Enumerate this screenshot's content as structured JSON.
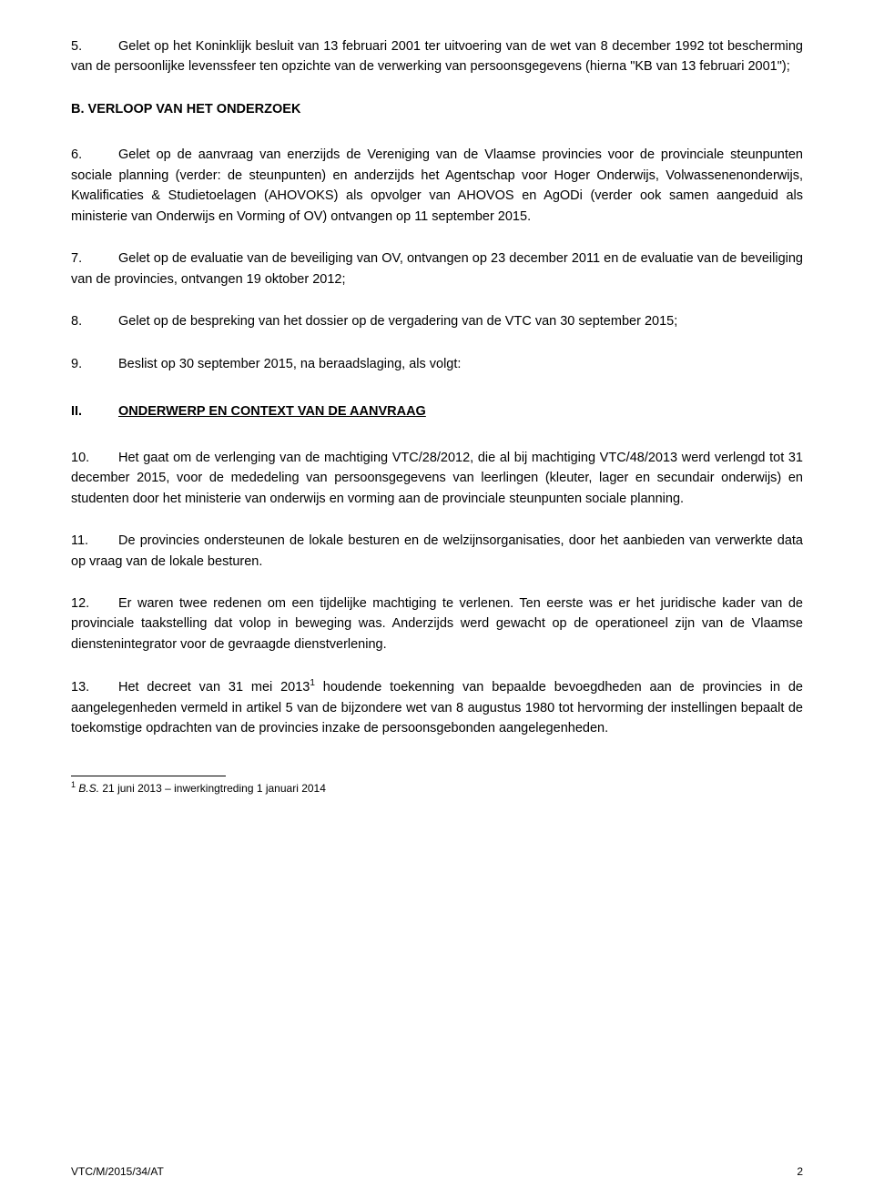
{
  "p5": {
    "num": "5.",
    "text": "Gelet op het Koninklijk besluit van 13 februari 2001 ter uitvoering van de wet van 8 december 1992 tot bescherming van de persoonlijke levenssfeer ten opzichte van de verwerking van persoonsgegevens (hierna \"KB van 13 februari 2001\");"
  },
  "headingB": "B. VERLOOP VAN HET ONDERZOEK",
  "p6": {
    "num": "6.",
    "text": "Gelet op de aanvraag van enerzijds de Vereniging van de Vlaamse provincies voor de provinciale steunpunten sociale planning (verder: de steunpunten) en anderzijds het Agentschap voor Hoger Onderwijs, Volwassenenonderwijs, Kwalificaties & Studietoelagen (AHOVOKS) als opvolger van AHOVOS en AgODi (verder ook samen aangeduid als ministerie van Onderwijs en Vorming of OV) ontvangen op 11 september 2015."
  },
  "p7": {
    "num": "7.",
    "text": "Gelet op de evaluatie van de beveiliging van OV, ontvangen op 23 december 2011 en de evaluatie van de beveiliging van de provincies, ontvangen 19 oktober 2012;"
  },
  "p8": {
    "num": "8.",
    "text": "Gelet op de bespreking van het dossier op de vergadering van de VTC van 30 september 2015;"
  },
  "p9": {
    "num": "9.",
    "text": "Beslist op 30 september 2015, na beraadslaging, als volgt:"
  },
  "headingII": {
    "roman": "II.",
    "text": "ONDERWERP EN CONTEXT VAN DE AANVRAAG"
  },
  "p10": {
    "num": "10.",
    "text": "Het gaat om de verlenging van de machtiging VTC/28/2012, die al bij machtiging VTC/48/2013 werd verlengd tot 31 december 2015, voor de mededeling van persoonsgegevens van leerlingen (kleuter, lager en secundair onderwijs) en studenten door het ministerie van onderwijs en vorming aan de provinciale steunpunten sociale planning."
  },
  "p11": {
    "num": "11.",
    "text": "De provincies ondersteunen de lokale besturen en de welzijnsorganisaties, door het aanbieden van verwerkte data op vraag van de lokale besturen."
  },
  "p12": {
    "num": "12.",
    "text": "Er waren twee redenen om een tijdelijke machtiging te verlenen. Ten eerste was er het juridische kader van de provinciale taakstelling dat volop in beweging was. Anderzijds werd gewacht op de operationeel zijn van de Vlaamse dienstenintegrator voor de gevraagde dienstverlening."
  },
  "p13": {
    "num": "13.",
    "before": "Het decreet van 31 mei 2013",
    "sup": "1",
    "after": " houdende toekenning van bepaalde bevoegdheden aan de provincies in de aangelegenheden vermeld in artikel 5 van de bijzondere wet van 8 augustus 1980 tot hervorming der instellingen bepaalt de toekomstige opdrachten van de provincies inzake de persoonsgebonden aangelegenheden."
  },
  "footnote": {
    "sup": "1",
    "italic": "B.S.",
    "rest": " 21 juni 2013 – inwerkingtreding 1 januari 2014"
  },
  "footer": {
    "ref": "VTC/M/2015/34/AT",
    "page": "2"
  }
}
